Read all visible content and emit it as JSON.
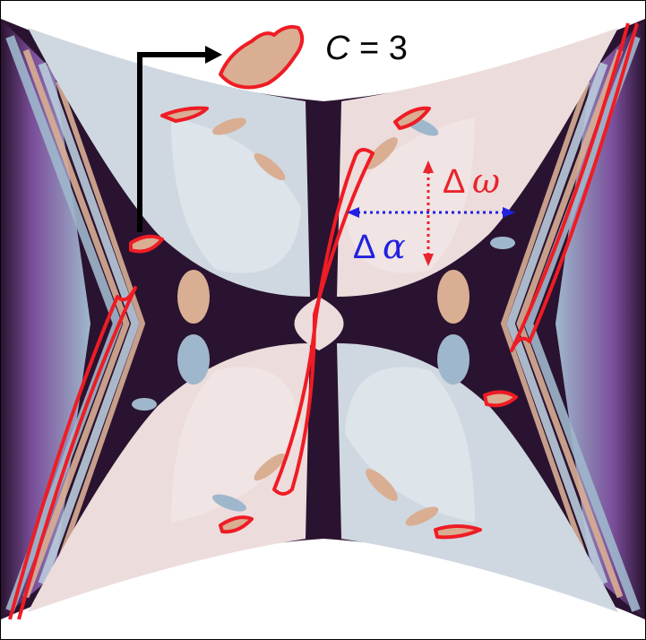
{
  "legend": {
    "symbol": "C",
    "equals": " = ",
    "value": "3"
  },
  "annotations": {
    "delta_omega": {
      "delta": "Δ",
      "symbol": "ω",
      "color": "#e8242c"
    },
    "delta_alpha": {
      "delta": "Δ",
      "symbol": "α",
      "color": "#2121e0"
    }
  },
  "colors": {
    "dark_gap": "#2a1330",
    "light_blue": "#cfd8e0",
    "light_pink": "#ecdcdc",
    "mid_blue": "#9fb7cc",
    "tan": "#d9ae93",
    "purple": "#7a4e9a",
    "contour_red": "#ef1c24",
    "arrow_black": "#000000"
  }
}
